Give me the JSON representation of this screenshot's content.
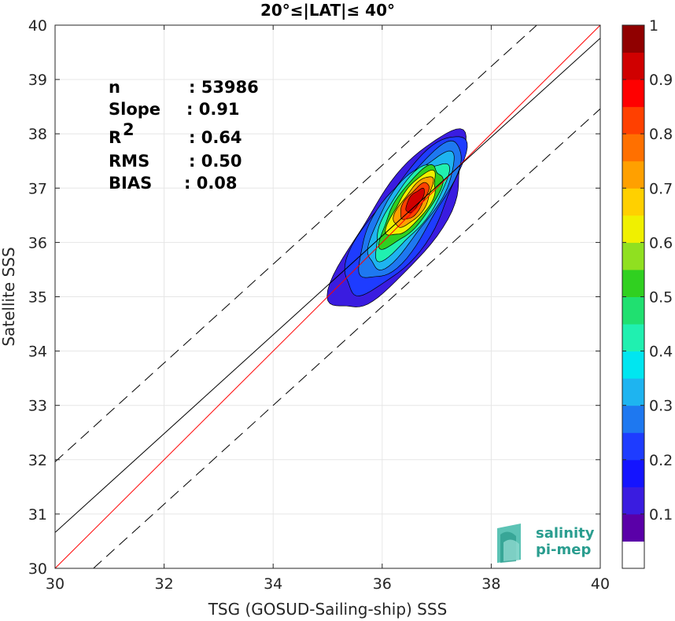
{
  "chart_data": {
    "type": "heatmap",
    "title": "20°≤|LAT|≤ 40°",
    "xlabel": "TSG (GOSUD-Sailing-ship) SSS",
    "ylabel": "Satellite SSS",
    "xlim": [
      30,
      40
    ],
    "ylim": [
      30,
      40
    ],
    "xticks": [
      "30",
      "32",
      "34",
      "36",
      "38",
      "40"
    ],
    "yticks": [
      "30",
      "31",
      "32",
      "33",
      "34",
      "35",
      "36",
      "37",
      "38",
      "39",
      "40"
    ],
    "grid": true,
    "stats": [
      {
        "label": "n",
        "value": ": 53986"
      },
      {
        "label": "Slope",
        "value": ": 0.91"
      },
      {
        "label": "R",
        "sup": "2",
        "value": ": 0.64"
      },
      {
        "label": "RMS",
        "value": ": 0.50"
      },
      {
        "label": "BIAS",
        "value": ": 0.08"
      }
    ],
    "lines": [
      {
        "name": "identity",
        "color": "#ff0000",
        "x": [
          30,
          40
        ],
        "y": [
          30,
          40
        ],
        "dash": false
      },
      {
        "name": "fit",
        "color": "#000000",
        "x": [
          30,
          40
        ],
        "y": [
          30.66,
          39.76
        ],
        "dash": false
      },
      {
        "name": "fit_plus",
        "color": "#000000",
        "x": [
          30,
          40
        ],
        "y": [
          31.96,
          41.06
        ],
        "dash": true
      },
      {
        "name": "fit_minus",
        "color": "#000000",
        "x": [
          30,
          40
        ],
        "y": [
          29.36,
          38.46
        ],
        "dash": true
      }
    ],
    "density": {
      "center": [
        36.5,
        36.6
      ],
      "angle_deg": 55,
      "levels": [
        0.05,
        0.1,
        0.2,
        0.3,
        0.4,
        0.5,
        0.6,
        0.7,
        0.8,
        0.9
      ]
    },
    "colorbar": {
      "range": [
        0,
        1
      ],
      "ticks": [
        "0.1",
        "0.2",
        "0.3",
        "0.4",
        "0.5",
        "0.6",
        "0.7",
        "0.8",
        "0.9",
        "1"
      ],
      "colors": [
        "#ffffff",
        "#5a00a8",
        "#3a1ce0",
        "#1414ff",
        "#1e3cff",
        "#1e78f0",
        "#1eb4f0",
        "#00e6f0",
        "#20f0b0",
        "#20e070",
        "#30d020",
        "#90e020",
        "#f0f000",
        "#ffd000",
        "#ffa000",
        "#ff7000",
        "#ff4000",
        "#ff0000",
        "#d00000",
        "#900000"
      ]
    },
    "logo": {
      "line1": "salinity",
      "line2": "pi-mep"
    }
  }
}
